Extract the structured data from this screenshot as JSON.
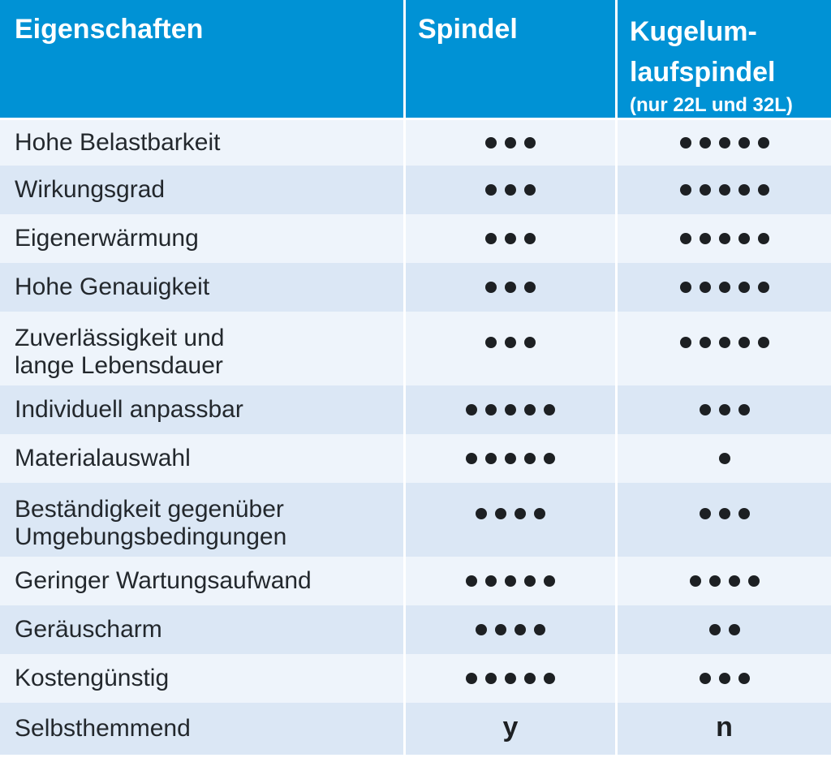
{
  "colors": {
    "header_bg": "#0092d5",
    "header_text": "#ffffff",
    "row_light": "#eef4fb",
    "row_dark": "#dbe7f5",
    "label_text": "#23282d",
    "dot": "#1d2023",
    "separator": "#ffffff"
  },
  "header": {
    "properties_label": "Eigenschaften",
    "spindel_label": "Spindel",
    "kugel_line1": "Kugelum-",
    "kugel_line2": "laufspindel",
    "kugel_note": "(nur 22L und 32L)"
  },
  "rows": [
    {
      "label_lines": [
        "Hohe Belastbarkeit"
      ],
      "spindel_dots": 3,
      "kugel_dots": 5
    },
    {
      "label_lines": [
        "Wirkungsgrad"
      ],
      "spindel_dots": 3,
      "kugel_dots": 5
    },
    {
      "label_lines": [
        "Eigenerwärmung"
      ],
      "spindel_dots": 3,
      "kugel_dots": 5
    },
    {
      "label_lines": [
        "Hohe Genauigkeit"
      ],
      "spindel_dots": 3,
      "kugel_dots": 5
    },
    {
      "label_lines": [
        "Zuverlässigkeit und",
        "lange Lebensdauer"
      ],
      "spindel_dots": 3,
      "kugel_dots": 5
    },
    {
      "label_lines": [
        "Individuell anpassbar"
      ],
      "spindel_dots": 5,
      "kugel_dots": 3
    },
    {
      "label_lines": [
        "Materialauswahl"
      ],
      "spindel_dots": 5,
      "kugel_dots": 1
    },
    {
      "label_lines": [
        "Beständigkeit gegenüber",
        "Umgebungsbedingungen"
      ],
      "spindel_dots": 4,
      "kugel_dots": 3
    },
    {
      "label_lines": [
        "Geringer Wartungsaufwand"
      ],
      "spindel_dots": 5,
      "kugel_dots": 4
    },
    {
      "label_lines": [
        "Geräuscharm"
      ],
      "spindel_dots": 4,
      "kugel_dots": 2
    },
    {
      "label_lines": [
        "Kostengünstig"
      ],
      "spindel_dots": 5,
      "kugel_dots": 3
    },
    {
      "label_lines": [
        "Selbsthemmend"
      ],
      "spindel_text": "y",
      "kugel_text": "n"
    }
  ],
  "chart_data": {
    "type": "table",
    "title": "Eigenschaften",
    "columns": [
      "Eigenschaften",
      "Spindel",
      "Kugelumlaufspindel (nur 22L und 32L)"
    ],
    "rating_symbol": "●",
    "rating_max": 5,
    "rows": [
      [
        "Hohe Belastbarkeit",
        3,
        5
      ],
      [
        "Wirkungsgrad",
        3,
        5
      ],
      [
        "Eigenerwärmung",
        3,
        5
      ],
      [
        "Hohe Genauigkeit",
        3,
        5
      ],
      [
        "Zuverlässigkeit und lange Lebensdauer",
        3,
        5
      ],
      [
        "Individuell anpassbar",
        5,
        3
      ],
      [
        "Materialauswahl",
        5,
        1
      ],
      [
        "Beständigkeit gegenüber Umgebungsbedingungen",
        4,
        3
      ],
      [
        "Geringer Wartungsaufwand",
        5,
        4
      ],
      [
        "Geräuscharm",
        4,
        2
      ],
      [
        "Kostengünstig",
        5,
        3
      ],
      [
        "Selbsthemmend",
        "y",
        "n"
      ]
    ]
  }
}
